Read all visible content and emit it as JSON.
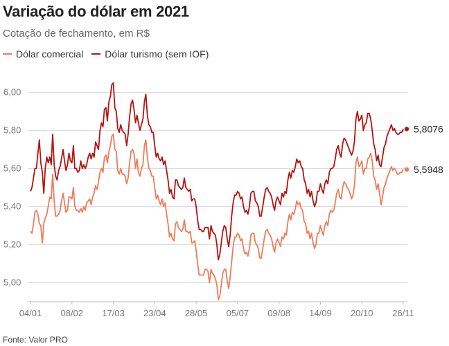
{
  "chart_data": {
    "type": "line",
    "title": "Variação do dólar em 2021",
    "subtitle": "Cotação de fechamento, em R$",
    "source": "Fonte: Valor PRO",
    "ylim": [
      4.9,
      6.1
    ],
    "yticks": [
      "6,00",
      "5,80",
      "5,60",
      "5,40",
      "5,20",
      "5,00"
    ],
    "ytick_values": [
      6.0,
      5.8,
      5.6,
      5.4,
      5.2,
      5.0
    ],
    "xticks": [
      "04/01",
      "08/02",
      "17/03",
      "23/04",
      "28/05",
      "05/07",
      "09/08",
      "14/09",
      "20/10",
      "26/11"
    ],
    "grid": true,
    "legend_position": "top-left",
    "series": [
      {
        "name": "Dólar comercial",
        "color": "#f07b5a",
        "end_label": "5,5948",
        "values": [
          5.27,
          5.26,
          5.31,
          5.37,
          5.38,
          5.36,
          5.31,
          5.3,
          5.21,
          5.31,
          5.34,
          5.36,
          5.4,
          5.45,
          5.44,
          5.57,
          5.43,
          5.35,
          5.35,
          5.36,
          5.38,
          5.43,
          5.47,
          5.42,
          5.37,
          5.38,
          5.45,
          5.45,
          5.44,
          5.5,
          5.4,
          5.38,
          5.38,
          5.37,
          5.39,
          5.37,
          5.4,
          5.38,
          5.42,
          5.43,
          5.44,
          5.41,
          5.45,
          5.47,
          5.51,
          5.49,
          5.53,
          5.58,
          5.6,
          5.58,
          5.66,
          5.67,
          5.63,
          5.69,
          5.72,
          5.77,
          5.78,
          5.7,
          5.69,
          5.59,
          5.57,
          5.6,
          5.57,
          5.57,
          5.56,
          5.52,
          5.55,
          5.63,
          5.69,
          5.7,
          5.68,
          5.6,
          5.65,
          5.58,
          5.56,
          5.6,
          5.62,
          5.72,
          5.75,
          5.66,
          5.6,
          5.59,
          5.56,
          5.56,
          5.5,
          5.44,
          5.46,
          5.43,
          5.41,
          5.44,
          5.4,
          5.42,
          5.36,
          5.31,
          5.24,
          5.26,
          5.23,
          5.22,
          5.31,
          5.32,
          5.29,
          5.28,
          5.27,
          5.28,
          5.33,
          5.27,
          5.27,
          5.26,
          5.27,
          5.21,
          5.21,
          5.22,
          5.17,
          5.1,
          5.04,
          5.04,
          5.04,
          5.04,
          5.07,
          5.07,
          5.06,
          5.0,
          5.07,
          5.05,
          5.04,
          5.02,
          4.99,
          4.91,
          4.93,
          4.99,
          5.05,
          5.07,
          5.07,
          5.01,
          4.97,
          5.03,
          5.11,
          5.19,
          5.24,
          5.24,
          5.26,
          5.25,
          5.22,
          5.23,
          5.18,
          5.15,
          5.16,
          5.14,
          5.18,
          5.25,
          5.26,
          5.26,
          5.21,
          5.2,
          5.18,
          5.13,
          5.13,
          5.18,
          5.23,
          5.27,
          5.28,
          5.26,
          5.25,
          5.23,
          5.19,
          5.16,
          5.21,
          5.23,
          5.21,
          5.19,
          5.24,
          5.23,
          5.26,
          5.25,
          5.32,
          5.36,
          5.33,
          5.37,
          5.36,
          5.39,
          5.43,
          5.41,
          5.42,
          5.39,
          5.38,
          5.32,
          5.31,
          5.26,
          5.27,
          5.23,
          5.26,
          5.21,
          5.18,
          5.2,
          5.26,
          5.26,
          5.3,
          5.27,
          5.25,
          5.3,
          5.32,
          5.3,
          5.36,
          5.38,
          5.37,
          5.38,
          5.42,
          5.47,
          5.49,
          5.45,
          5.44,
          5.5,
          5.53,
          5.52,
          5.5,
          5.49,
          5.47,
          5.44,
          5.46,
          5.51,
          5.63,
          5.66,
          5.61,
          5.62,
          5.64,
          5.57,
          5.6,
          5.6,
          5.65,
          5.66,
          5.68,
          5.64,
          5.56,
          5.54,
          5.49,
          5.52,
          5.47,
          5.41,
          5.45,
          5.5,
          5.52,
          5.55,
          5.57,
          5.59,
          5.61,
          5.59,
          5.6,
          5.59,
          5.57,
          5.57,
          5.58,
          5.58,
          5.5948
        ]
      },
      {
        "name": "Dólar turismo (sem IOF)",
        "color": "#b5120f",
        "end_label": "5,8076",
        "values": [
          5.48,
          5.5,
          5.55,
          5.6,
          5.6,
          5.68,
          5.75,
          5.63,
          5.58,
          5.47,
          5.6,
          5.66,
          5.63,
          5.66,
          5.62,
          5.78,
          5.62,
          5.56,
          5.54,
          5.59,
          5.61,
          5.65,
          5.7,
          5.64,
          5.59,
          5.62,
          5.68,
          5.64,
          5.63,
          5.72,
          5.6,
          5.6,
          5.58,
          5.59,
          5.64,
          5.6,
          5.62,
          5.6,
          5.62,
          5.66,
          5.68,
          5.65,
          5.68,
          5.66,
          5.74,
          5.72,
          5.7,
          5.8,
          5.84,
          5.82,
          5.91,
          5.92,
          5.85,
          5.95,
          5.98,
          6.04,
          6.05,
          5.92,
          5.9,
          5.81,
          5.79,
          5.83,
          5.8,
          5.79,
          5.78,
          5.72,
          5.78,
          5.87,
          5.94,
          5.96,
          5.91,
          5.84,
          5.88,
          5.84,
          5.8,
          5.83,
          5.86,
          5.95,
          5.99,
          5.88,
          5.83,
          5.82,
          5.79,
          5.79,
          5.72,
          5.66,
          5.68,
          5.65,
          5.64,
          5.66,
          5.62,
          5.64,
          5.59,
          5.54,
          5.47,
          5.49,
          5.45,
          5.44,
          5.54,
          5.54,
          5.51,
          5.5,
          5.49,
          5.5,
          5.55,
          5.5,
          5.49,
          5.48,
          5.49,
          5.43,
          5.44,
          5.44,
          5.4,
          5.33,
          5.28,
          5.28,
          5.27,
          5.27,
          5.29,
          5.29,
          5.29,
          5.23,
          5.3,
          5.27,
          5.26,
          5.25,
          5.2,
          5.12,
          5.15,
          5.21,
          5.27,
          5.3,
          5.29,
          5.23,
          5.19,
          5.25,
          5.35,
          5.42,
          5.46,
          5.46,
          5.48,
          5.47,
          5.44,
          5.45,
          5.4,
          5.37,
          5.38,
          5.36,
          5.4,
          5.47,
          5.48,
          5.48,
          5.43,
          5.42,
          5.4,
          5.35,
          5.35,
          5.4,
          5.45,
          5.49,
          5.5,
          5.48,
          5.47,
          5.45,
          5.41,
          5.38,
          5.43,
          5.45,
          5.43,
          5.41,
          5.47,
          5.45,
          5.48,
          5.47,
          5.54,
          5.58,
          5.55,
          5.59,
          5.58,
          5.61,
          5.65,
          5.63,
          5.64,
          5.61,
          5.6,
          5.54,
          5.52,
          5.47,
          5.49,
          5.45,
          5.48,
          5.43,
          5.4,
          5.42,
          5.48,
          5.48,
          5.52,
          5.49,
          5.47,
          5.52,
          5.54,
          5.52,
          5.58,
          5.6,
          5.6,
          5.61,
          5.65,
          5.7,
          5.72,
          5.68,
          5.66,
          5.73,
          5.76,
          5.75,
          5.73,
          5.71,
          5.69,
          5.67,
          5.69,
          5.74,
          5.86,
          5.9,
          5.85,
          5.86,
          5.88,
          5.8,
          5.83,
          5.84,
          5.89,
          5.89,
          5.86,
          5.8,
          5.73,
          5.7,
          5.64,
          5.67,
          5.62,
          5.61,
          5.66,
          5.71,
          5.73,
          5.77,
          5.79,
          5.81,
          5.83,
          5.8,
          5.81,
          5.79,
          5.78,
          5.78,
          5.79,
          5.79,
          5.8076
        ]
      }
    ]
  }
}
